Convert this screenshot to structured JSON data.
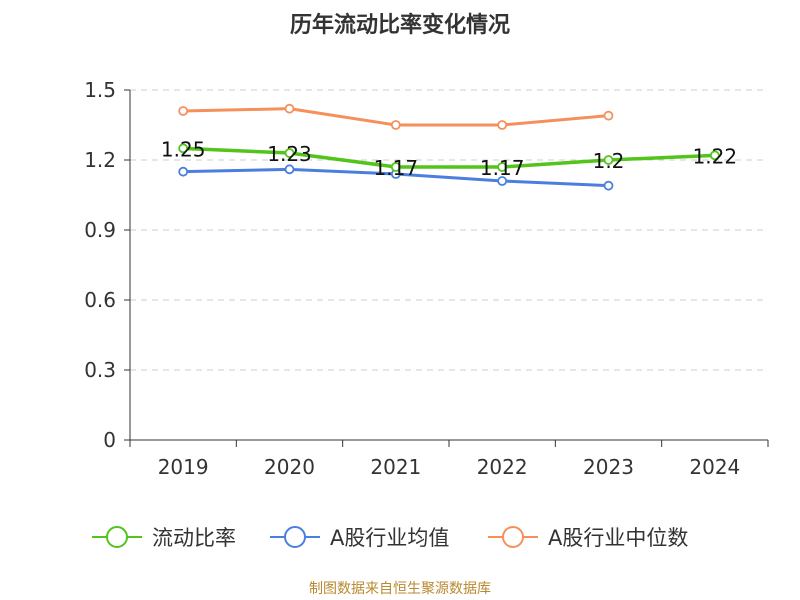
{
  "chart_data": {
    "type": "line",
    "title": "历年流动比率变化情况",
    "categories": [
      "2019",
      "2020",
      "2021",
      "2022",
      "2023",
      "2024"
    ],
    "y_ticks": [
      "0",
      "0.3",
      "0.6",
      "0.9",
      "1.2",
      "1.5"
    ],
    "ylim": [
      0,
      1.5
    ],
    "grid": true,
    "legend_position": "bottom",
    "series": [
      {
        "name": "流动比率",
        "color": "#52c41a",
        "values": [
          1.25,
          1.23,
          1.17,
          1.17,
          1.2,
          1.22
        ],
        "labels": [
          "1.25",
          "1.23",
          "1.17",
          "1.17",
          "1.2",
          "1.22"
        ]
      },
      {
        "name": "A股行业均值",
        "color": "#4a7fe0",
        "values": [
          1.15,
          1.16,
          1.14,
          1.11,
          1.09,
          null
        ]
      },
      {
        "name": "A股行业中位数",
        "color": "#f5905b",
        "values": [
          1.41,
          1.42,
          1.35,
          1.35,
          1.39,
          null
        ]
      }
    ]
  },
  "footer": {
    "source_text": "制图数据来自恒生聚源数据库"
  }
}
